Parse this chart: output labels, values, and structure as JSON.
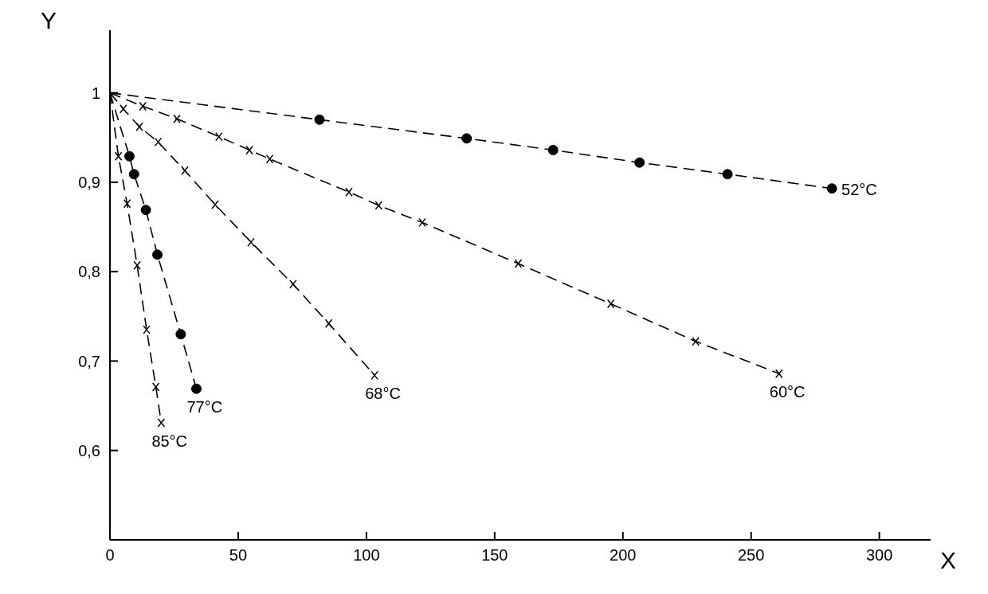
{
  "chart_data": {
    "type": "line",
    "xlabel": "X",
    "ylabel": "Y",
    "xlim": [
      0,
      320
    ],
    "ylim": [
      0.5,
      1.07
    ],
    "xticks": [
      0,
      50,
      100,
      150,
      200,
      250,
      300
    ],
    "yticks": [
      {
        "value": 0.6,
        "label": "0,6"
      },
      {
        "value": 0.7,
        "label": "0,7"
      },
      {
        "value": 0.8,
        "label": "0,8"
      },
      {
        "value": 0.9,
        "label": "0,9"
      },
      {
        "value": 1,
        "label": "1"
      }
    ],
    "grid": false,
    "legend": false,
    "series": [
      {
        "name": "52°C",
        "color": "#000000",
        "marker": "circle",
        "line_style": "dashed",
        "x": [
          0,
          81.7,
          139.1,
          172.8,
          206.5,
          240.8,
          281.5
        ],
        "values": [
          1,
          0.97,
          0.949,
          0.936,
          0.922,
          0.909,
          0.893
        ]
      },
      {
        "name": "60°C",
        "color": "#000000",
        "marker": "cross",
        "line_style": "dashed",
        "x": [
          0,
          12.8,
          26.1,
          42.5,
          54.4,
          62.3,
          93.2,
          104.8,
          121.8,
          159.2,
          195.3,
          228.4,
          260.9
        ],
        "values": [
          1,
          0.985,
          0.971,
          0.951,
          0.936,
          0.926,
          0.889,
          0.874,
          0.855,
          0.809,
          0.764,
          0.722,
          0.686
        ]
      },
      {
        "name": "68°C",
        "color": "#000000",
        "marker": "cross",
        "line_style": "dashed",
        "x": [
          0,
          5.2,
          11.5,
          18.8,
          29.2,
          41,
          55,
          71.4,
          85.3,
          103.2
        ],
        "values": [
          1,
          0.982,
          0.962,
          0.945,
          0.913,
          0.875,
          0.833,
          0.786,
          0.742,
          0.684
        ]
      },
      {
        "name": "77°C",
        "color": "#000000",
        "marker": "circle",
        "line_style": "dashed",
        "x": [
          0,
          7.6,
          9.4,
          14,
          18.5,
          27.6,
          33.7
        ],
        "values": [
          1,
          0.929,
          0.909,
          0.869,
          0.819,
          0.73,
          0.669
        ]
      },
      {
        "name": "85°C",
        "color": "#000000",
        "marker": "cross",
        "line_style": "dashed",
        "x": [
          0,
          3.3,
          6.7,
          10.6,
          14.3,
          17.9,
          20
        ],
        "values": [
          1,
          0.929,
          0.876,
          0.807,
          0.735,
          0.671,
          0.631
        ]
      }
    ]
  }
}
